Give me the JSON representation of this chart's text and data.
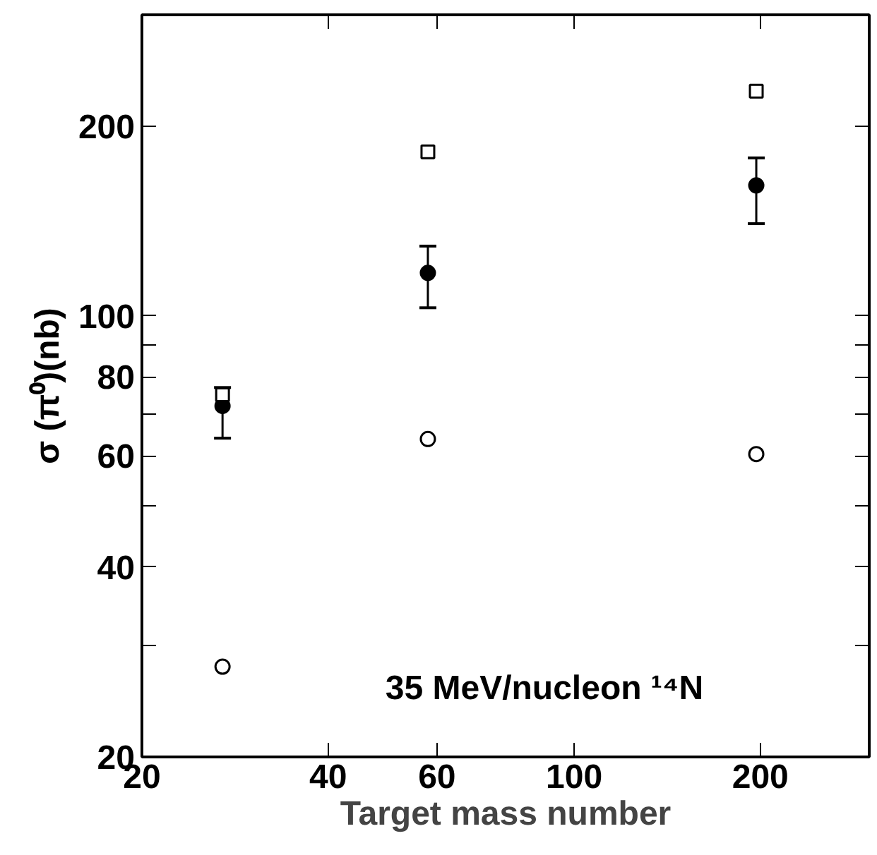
{
  "chart_data": {
    "type": "scatter",
    "xlabel": "Target mass number",
    "ylabel": "σ (π⁰)(nb)",
    "log": "xy",
    "grid": false,
    "x": [
      27,
      58,
      197
    ],
    "xlim": [
      20,
      300
    ],
    "ylim": [
      20,
      300
    ],
    "xticks": [
      20,
      40,
      60,
      100,
      200
    ],
    "yticks": [
      20,
      {
        "value": 30,
        "label": null
      },
      40,
      {
        "value": 50,
        "label": null
      },
      60,
      {
        "value": 70,
        "label": null
      },
      80,
      {
        "value": 90,
        "label": null
      },
      100,
      200
    ],
    "series": [
      {
        "color": "#000000",
        "marker": "circle",
        "values": [
          72,
          117,
          161
        ],
        "errors": [
          [
            64,
            77
          ],
          [
            103,
            129
          ],
          [
            140,
            178
          ]
        ]
      },
      {
        "color": "#000000",
        "marker": "square",
        "values": [
          75,
          182,
          227
        ]
      },
      {
        "color": "#000000",
        "marker": "circle",
        "values": [
          27.8,
          63.8,
          60.4
        ]
      }
    ],
    "annotations": [
      "35 MeV/nucleon ¹⁴N"
    ]
  }
}
